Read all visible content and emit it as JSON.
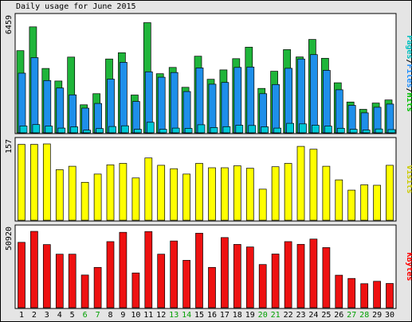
{
  "chart_data": {
    "type": "bar",
    "title": "Daily usage for June 2015",
    "categories": [
      "1",
      "2",
      "3",
      "4",
      "5",
      "6",
      "7",
      "8",
      "9",
      "10",
      "11",
      "12",
      "13",
      "14",
      "15",
      "16",
      "17",
      "18",
      "19",
      "20",
      "21",
      "22",
      "23",
      "24",
      "25",
      "26",
      "27",
      "28",
      "29",
      "30"
    ],
    "weekend_days": [
      "6",
      "7",
      "13",
      "14",
      "20",
      "21",
      "27",
      "28"
    ],
    "weekend_color": "#00a000",
    "panels": [
      {
        "ylabel_parts": [
          {
            "text": "Pages",
            "color": "#00c0c0"
          },
          {
            "text": "/",
            "color": "#000000"
          },
          {
            "text": "Files",
            "color": "#1e90ff"
          },
          {
            "text": "/",
            "color": "#000000"
          },
          {
            "text": "Hits",
            "color": "#00c000"
          }
        ],
        "max_label": "6459",
        "max": 6459,
        "series": [
          {
            "name": "Hits",
            "color": "#1fb53a",
            "values": [
              4700,
              6060,
              3680,
              2960,
              4330,
              1600,
              2240,
              4220,
              4580,
              2160,
              6300,
              3380,
              3740,
              2600,
              4380,
              3060,
              3600,
              4240,
              4900,
              2540,
              3520,
              4760,
              4340,
              5340,
              4260,
              2860,
              1760,
              1340,
              1700,
              1880
            ]
          },
          {
            "name": "Files",
            "color": "#1e8fea",
            "values": [
              3410,
              4300,
              2990,
              2560,
              2170,
              1410,
              1680,
              3070,
              4030,
              1790,
              3490,
              3180,
              3450,
              2360,
              3710,
              2780,
              2880,
              3740,
              3760,
              2240,
              2760,
              3690,
              4220,
              4470,
              3570,
              2460,
              1570,
              1140,
              1460,
              1640
            ]
          },
          {
            "name": "Pages",
            "color": "#00c8d6",
            "values": [
              390,
              470,
              380,
              270,
              340,
              150,
              240,
              360,
              400,
              200,
              600,
              200,
              270,
              250,
              460,
              300,
              350,
              430,
              420,
              340,
              270,
              540,
              510,
              430,
              380,
              260,
              200,
              160,
              220,
              180
            ]
          }
        ]
      },
      {
        "ylabel_parts": [
          {
            "text": "Visits",
            "color": "#cccc00"
          }
        ],
        "max_label": "157",
        "max": 157,
        "series": [
          {
            "name": "Visits",
            "color": "#ffff00",
            "values": [
              156,
              156,
              157,
              104,
              111,
              78,
              95,
              114,
              117,
              87,
              128,
              113,
              106,
              95,
              117,
              108,
              108,
              112,
              107,
              64,
              110,
              117,
              152,
              146,
              111,
              83,
              62,
              73,
              72,
              113
            ]
          }
        ]
      },
      {
        "ylabel_parts": [
          {
            "text": "KBytes",
            "color": "#ff0000"
          }
        ],
        "max_label": "50920",
        "max": 50920,
        "series": [
          {
            "name": "KBytes",
            "color": "#ee1111",
            "values": [
              43600,
              50920,
              42100,
              35700,
              35700,
              21800,
              26900,
              44100,
              50300,
              23200,
              50800,
              35700,
              44500,
              31600,
              49700,
              26900,
              46800,
              42200,
              40500,
              28800,
              35800,
              44100,
              42300,
              45800,
              40100,
              21700,
              19500,
              16000,
              17600,
              16200
            ]
          }
        ]
      }
    ]
  }
}
